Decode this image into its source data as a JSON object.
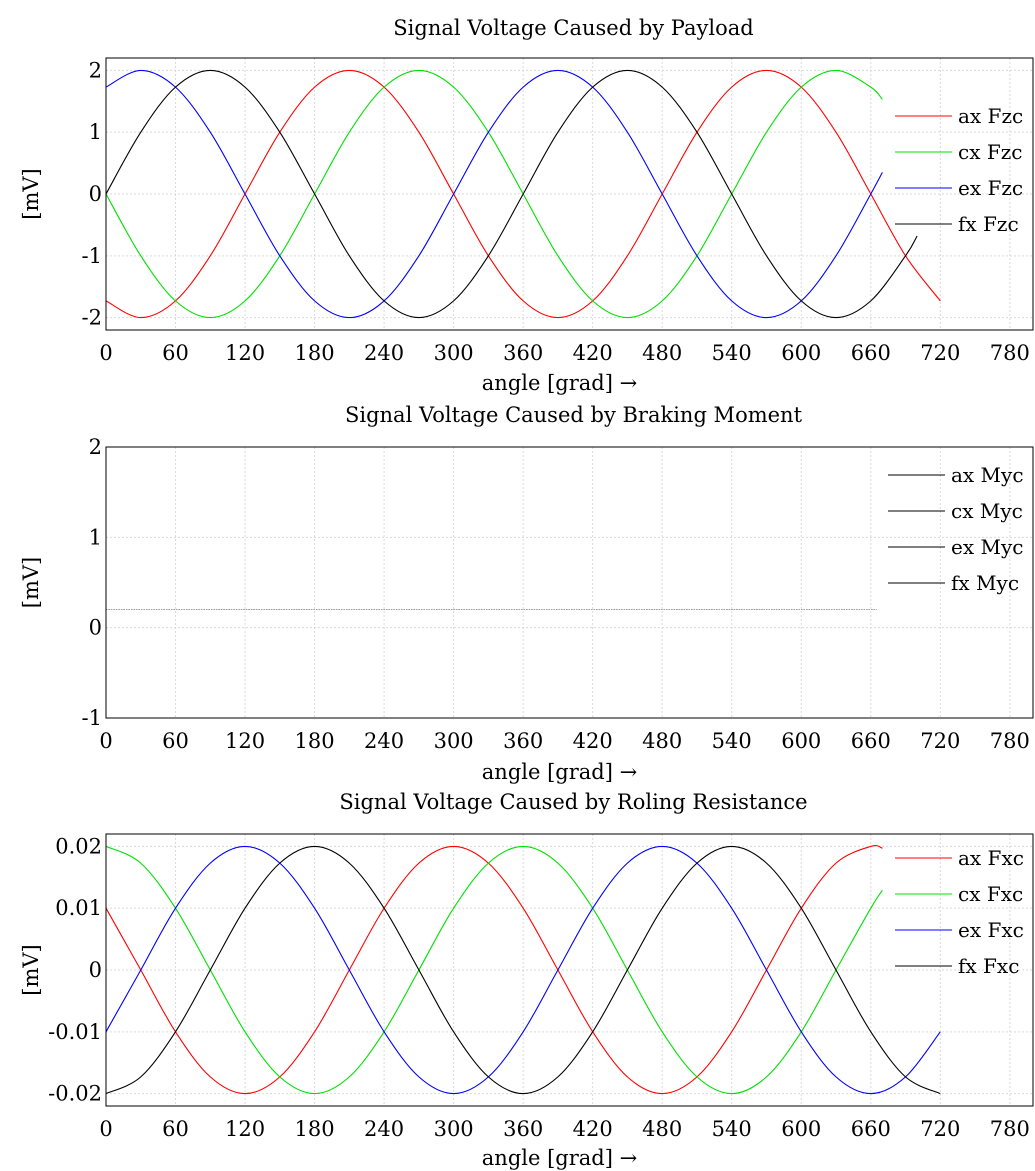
{
  "chart_data": [
    {
      "type": "line",
      "title": "Signal Voltage Caused by Payload",
      "xlabel": "angle [grad] →",
      "ylabel": "[mV]",
      "xlim": [
        0,
        800
      ],
      "ylim": [
        -2.2,
        2.2
      ],
      "xticks": [
        "0",
        "60",
        "120",
        "180",
        "240",
        "300",
        "360",
        "420",
        "480",
        "540",
        "600",
        "660",
        "720",
        "780"
      ],
      "yticks": [
        "-2",
        "-1",
        "0",
        "1",
        "2"
      ],
      "grid": true,
      "legend_position": "top-right",
      "series": [
        {
          "name": "ax Fzc",
          "color": "#ff0000",
          "x": [
            0,
            30,
            60,
            90,
            120,
            150,
            180,
            210,
            240,
            270,
            300,
            330,
            360,
            390,
            420,
            450,
            480,
            510,
            540,
            570,
            600,
            630,
            660,
            690,
            720
          ],
          "y": [
            -1.73,
            -2.0,
            -1.73,
            -1.0,
            0.0,
            1.0,
            1.73,
            2.0,
            1.73,
            1.0,
            0.0,
            -1.0,
            -1.73,
            -2.0,
            -1.73,
            -1.0,
            0.0,
            1.0,
            1.73,
            2.0,
            1.73,
            1.0,
            0.0,
            -1.0,
            -1.73
          ]
        },
        {
          "name": "cx Fzc",
          "color": "#00e000",
          "x": [
            0,
            30,
            60,
            90,
            120,
            150,
            180,
            210,
            240,
            270,
            300,
            330,
            360,
            390,
            420,
            450,
            480,
            510,
            540,
            570,
            600,
            630,
            660,
            670
          ],
          "y": [
            0.0,
            -1.0,
            -1.73,
            -2.0,
            -1.73,
            -1.0,
            0.0,
            1.0,
            1.73,
            2.0,
            1.73,
            1.0,
            0.0,
            -1.0,
            -1.73,
            -2.0,
            -1.73,
            -1.0,
            0.0,
            1.0,
            1.73,
            2.0,
            1.73,
            1.53
          ]
        },
        {
          "name": "ex Fzc",
          "color": "#0000ff",
          "x": [
            0,
            30,
            60,
            90,
            120,
            150,
            180,
            210,
            240,
            270,
            300,
            330,
            360,
            390,
            420,
            450,
            480,
            510,
            540,
            570,
            600,
            630,
            660,
            670
          ],
          "y": [
            1.73,
            2.0,
            1.73,
            1.0,
            0.0,
            -1.0,
            -1.73,
            -2.0,
            -1.73,
            -1.0,
            0.0,
            1.0,
            1.73,
            2.0,
            1.73,
            1.0,
            0.0,
            -1.0,
            -1.73,
            -2.0,
            -1.73,
            -1.0,
            0.0,
            0.35
          ]
        },
        {
          "name": "fx Fzc",
          "color": "#000000",
          "x": [
            0,
            30,
            60,
            90,
            120,
            150,
            180,
            210,
            240,
            270,
            300,
            330,
            360,
            390,
            420,
            450,
            480,
            510,
            540,
            570,
            600,
            630,
            660,
            690,
            700
          ],
          "y": [
            0.0,
            1.0,
            1.73,
            2.0,
            1.73,
            1.0,
            0.0,
            -1.0,
            -1.73,
            -2.0,
            -1.73,
            -1.0,
            0.0,
            1.0,
            1.73,
            2.0,
            1.73,
            1.0,
            0.0,
            -1.0,
            -1.73,
            -2.0,
            -1.73,
            -1.0,
            -0.68
          ]
        }
      ]
    },
    {
      "type": "line",
      "title": "Signal Voltage Caused by Braking Moment",
      "xlabel": "angle [grad] →",
      "ylabel": "[mV]",
      "xlim": [
        0,
        800
      ],
      "ylim": [
        -1,
        2
      ],
      "xticks": [
        "0",
        "60",
        "120",
        "180",
        "240",
        "300",
        "360",
        "420",
        "480",
        "540",
        "600",
        "660",
        "720",
        "780"
      ],
      "yticks": [
        "-1",
        "0",
        "1",
        "2"
      ],
      "grid": true,
      "legend_position": "top-right",
      "series": [
        {
          "name": "ax Myc",
          "color": "#000000",
          "x": [
            0,
            665
          ],
          "y": [
            0.2,
            0.2
          ]
        },
        {
          "name": "cx Myc",
          "color": "#000000",
          "x": [
            0,
            665
          ],
          "y": [
            0.2,
            0.2
          ]
        },
        {
          "name": "ex Myc",
          "color": "#000000",
          "x": [
            0,
            665
          ],
          "y": [
            0.2,
            0.2
          ]
        },
        {
          "name": "fx Myc",
          "color": "#000000",
          "x": [
            0,
            665
          ],
          "y": [
            0.2,
            0.2
          ]
        }
      ]
    },
    {
      "type": "line",
      "title": "Signal Voltage Caused by Roling Resistance",
      "xlabel": "angle [grad] →",
      "ylabel": "[mV]",
      "xlim": [
        0,
        800
      ],
      "ylim": [
        -0.022,
        0.022
      ],
      "xticks": [
        "0",
        "60",
        "120",
        "180",
        "240",
        "300",
        "360",
        "420",
        "480",
        "540",
        "600",
        "660",
        "720",
        "780"
      ],
      "yticks": [
        "-0.02",
        "-0.01",
        "0",
        "0.01",
        "0.02"
      ],
      "grid": true,
      "legend_position": "top-right",
      "series": [
        {
          "name": "ax Fxc",
          "color": "#ff0000",
          "x": [
            0,
            30,
            60,
            90,
            120,
            150,
            180,
            210,
            240,
            270,
            300,
            330,
            360,
            390,
            420,
            450,
            480,
            510,
            540,
            570,
            600,
            630,
            660,
            670
          ],
          "y": [
            0.01,
            0.0,
            -0.01,
            -0.0173,
            -0.02,
            -0.0173,
            -0.01,
            0.0,
            0.01,
            0.0173,
            0.02,
            0.0173,
            0.01,
            0.0,
            -0.01,
            -0.0173,
            -0.02,
            -0.0173,
            -0.01,
            0.0,
            0.01,
            0.0173,
            0.02,
            0.0197
          ]
        },
        {
          "name": "cx Fxc",
          "color": "#00e000",
          "x": [
            0,
            30,
            60,
            90,
            120,
            150,
            180,
            210,
            240,
            270,
            300,
            330,
            360,
            390,
            420,
            450,
            480,
            510,
            540,
            570,
            600,
            630,
            660,
            670
          ],
          "y": [
            0.02,
            0.0173,
            0.01,
            0.0,
            -0.01,
            -0.0173,
            -0.02,
            -0.0173,
            -0.01,
            0.0,
            0.01,
            0.0173,
            0.02,
            0.0173,
            0.01,
            0.0,
            -0.01,
            -0.0173,
            -0.02,
            -0.0173,
            -0.01,
            0.0,
            0.01,
            0.0129
          ]
        },
        {
          "name": "ex Fxc",
          "color": "#0000ff",
          "x": [
            0,
            30,
            60,
            90,
            120,
            150,
            180,
            210,
            240,
            270,
            300,
            330,
            360,
            390,
            420,
            450,
            480,
            510,
            540,
            570,
            600,
            630,
            660,
            690,
            720
          ],
          "y": [
            -0.01,
            0.0,
            0.01,
            0.0173,
            0.02,
            0.0173,
            0.01,
            0.0,
            -0.01,
            -0.0173,
            -0.02,
            -0.0173,
            -0.01,
            0.0,
            0.01,
            0.0173,
            0.02,
            0.0173,
            0.01,
            0.0,
            -0.01,
            -0.0173,
            -0.02,
            -0.0173,
            -0.01
          ]
        },
        {
          "name": "fx Fxc",
          "color": "#000000",
          "x": [
            0,
            30,
            60,
            90,
            120,
            150,
            180,
            210,
            240,
            270,
            300,
            330,
            360,
            390,
            420,
            450,
            480,
            510,
            540,
            570,
            600,
            630,
            660,
            690,
            720
          ],
          "y": [
            -0.02,
            -0.0173,
            -0.01,
            0.0,
            0.01,
            0.0173,
            0.02,
            0.0173,
            0.01,
            0.0,
            -0.01,
            -0.0173,
            -0.02,
            -0.0173,
            -0.01,
            0.0,
            0.01,
            0.0173,
            0.02,
            0.0173,
            0.01,
            0.0,
            -0.01,
            -0.0173,
            -0.02
          ]
        }
      ]
    }
  ]
}
